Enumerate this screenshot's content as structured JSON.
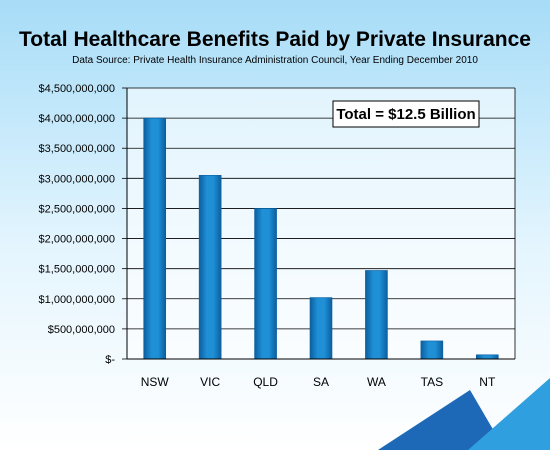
{
  "colors": {
    "bar": "#1f8fd6",
    "bar_dark": "#0b5f9f",
    "grid": "#000000",
    "corner_dark": "#1d69b8",
    "corner_light": "#2f9fe0"
  },
  "chart_data": {
    "type": "bar",
    "title": "Total Healthcare Benefits Paid by Private Insurance",
    "subtitle": "Data Source: Private Health Insurance Administration Council, Year Ending December 2010",
    "xlabel": "",
    "ylabel": "",
    "categories": [
      "NSW",
      "VIC",
      "QLD",
      "SA",
      "WA",
      "TAS",
      "NT"
    ],
    "values": [
      4000000000,
      3050000000,
      2500000000,
      1020000000,
      1470000000,
      300000000,
      70000000
    ],
    "ylim": [
      0,
      4500000000
    ],
    "yticks": [
      {
        "value": 0,
        "label": "$-"
      },
      {
        "value": 500000000,
        "label": "$500,000,000"
      },
      {
        "value": 1000000000,
        "label": "$1,000,000,000"
      },
      {
        "value": 1500000000,
        "label": "$1,500,000,000"
      },
      {
        "value": 2000000000,
        "label": "$2,000,000,000"
      },
      {
        "value": 2500000000,
        "label": "$2,500,000,000"
      },
      {
        "value": 3000000000,
        "label": "$3,000,000,000"
      },
      {
        "value": 3500000000,
        "label": "$3,500,000,000"
      },
      {
        "value": 4000000000,
        "label": "$4,000,000,000"
      },
      {
        "value": 4500000000,
        "label": "$4,500,000,000"
      }
    ],
    "grid": true,
    "legend": "none",
    "annotation": "Total = $12.5 Billion"
  }
}
